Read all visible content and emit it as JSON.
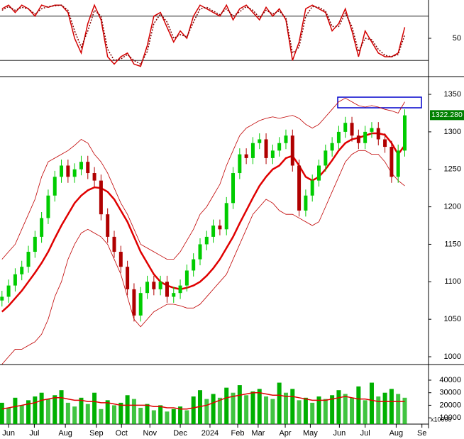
{
  "chart_data": [
    {
      "type": "line",
      "xlim": [
        -0.3,
        64.6
      ],
      "ylim": [
        0,
        100
      ],
      "yticks": [
        50
      ],
      "levels": [
        20,
        80
      ],
      "x": [
        0,
        1,
        2,
        3,
        4,
        5,
        6,
        7,
        8,
        9,
        10,
        11,
        12,
        13,
        14,
        15,
        16,
        17,
        18,
        19,
        20,
        21,
        22,
        23,
        24,
        25,
        26,
        27,
        28,
        29,
        30,
        31,
        32,
        33,
        34,
        35,
        36,
        37,
        38,
        39,
        40,
        41,
        42,
        43,
        44,
        45,
        46,
        47,
        48,
        49,
        50,
        51,
        52,
        53,
        54,
        55,
        56,
        57,
        58,
        59,
        60,
        61
      ],
      "series": [
        {
          "color": "#d40000",
          "values": [
            90,
            95,
            85,
            95,
            90,
            80,
            95,
            92,
            95,
            95,
            85,
            50,
            30,
            70,
            95,
            75,
            25,
            15,
            25,
            30,
            15,
            12,
            40,
            80,
            85,
            65,
            45,
            60,
            50,
            80,
            95,
            90,
            85,
            80,
            95,
            75,
            90,
            95,
            85,
            75,
            92,
            80,
            90,
            75,
            20,
            45,
            90,
            95,
            90,
            85,
            60,
            70,
            90,
            60,
            25,
            60,
            45,
            30,
            25,
            25,
            30,
            65
          ]
        },
        {
          "color": "#800000",
          "dashed": true,
          "values": [
            88,
            93,
            88,
            92,
            90,
            83,
            90,
            93,
            94,
            95,
            88,
            60,
            38,
            60,
            88,
            80,
            35,
            20,
            22,
            28,
            20,
            15,
            32,
            70,
            83,
            72,
            50,
            55,
            52,
            72,
            90,
            92,
            87,
            82,
            90,
            80,
            86,
            93,
            88,
            78,
            88,
            83,
            87,
            78,
            30,
            38,
            80,
            93,
            92,
            87,
            66,
            66,
            84,
            66,
            32,
            50,
            48,
            35,
            27,
            25,
            28,
            55
          ]
        }
      ]
    },
    {
      "type": "candlestick",
      "xlim": [
        -0.3,
        64.6
      ],
      "ylim": [
        991.5,
        1371.8
      ],
      "yticks": [
        1000,
        1050,
        1100,
        1150,
        1200,
        1250,
        1300,
        1350
      ],
      "up_color": "#00cc00",
      "down_color": "#b00000",
      "last_price": {
        "value": 1322.28,
        "label": "1322.280"
      },
      "x": [
        0,
        1,
        2,
        3,
        4,
        5,
        6,
        7,
        8,
        9,
        10,
        11,
        12,
        13,
        14,
        15,
        16,
        17,
        18,
        19,
        20,
        21,
        22,
        23,
        24,
        25,
        26,
        27,
        28,
        29,
        30,
        31,
        32,
        33,
        34,
        35,
        36,
        37,
        38,
        39,
        40,
        41,
        42,
        43,
        44,
        45,
        46,
        47,
        48,
        49,
        50,
        51,
        52,
        53,
        54,
        55,
        56,
        57,
        58,
        59,
        60,
        61
      ],
      "open": [
        1075,
        1080,
        1095,
        1110,
        1120,
        1140,
        1160,
        1185,
        1215,
        1240,
        1255,
        1240,
        1250,
        1260,
        1245,
        1235,
        1190,
        1160,
        1140,
        1120,
        1090,
        1055,
        1085,
        1100,
        1090,
        1100,
        1080,
        1085,
        1095,
        1115,
        1130,
        1150,
        1160,
        1175,
        1170,
        1205,
        1245,
        1270,
        1265,
        1285,
        1290,
        1265,
        1275,
        1285,
        1295,
        1255,
        1195,
        1215,
        1235,
        1255,
        1275,
        1285,
        1300,
        1312,
        1295,
        1285,
        1300,
        1305,
        1290,
        1280,
        1240,
        1275
      ],
      "high": [
        1088,
        1103,
        1118,
        1128,
        1148,
        1168,
        1193,
        1223,
        1248,
        1263,
        1263,
        1258,
        1268,
        1268,
        1253,
        1243,
        1198,
        1168,
        1148,
        1128,
        1098,
        1093,
        1108,
        1108,
        1108,
        1108,
        1093,
        1103,
        1123,
        1138,
        1158,
        1168,
        1183,
        1183,
        1213,
        1253,
        1278,
        1278,
        1293,
        1298,
        1298,
        1283,
        1293,
        1303,
        1303,
        1263,
        1223,
        1243,
        1263,
        1283,
        1293,
        1308,
        1320,
        1320,
        1303,
        1308,
        1313,
        1313,
        1298,
        1288,
        1283,
        1330
      ],
      "low": [
        1067,
        1072,
        1087,
        1102,
        1112,
        1132,
        1152,
        1177,
        1207,
        1232,
        1232,
        1232,
        1242,
        1237,
        1227,
        1182,
        1152,
        1132,
        1112,
        1082,
        1047,
        1047,
        1077,
        1082,
        1082,
        1072,
        1072,
        1077,
        1087,
        1107,
        1122,
        1142,
        1152,
        1162,
        1162,
        1197,
        1237,
        1257,
        1257,
        1277,
        1257,
        1257,
        1267,
        1277,
        1247,
        1187,
        1187,
        1207,
        1227,
        1247,
        1267,
        1277,
        1292,
        1287,
        1277,
        1277,
        1292,
        1282,
        1272,
        1232,
        1232,
        1267
      ],
      "close": [
        1080,
        1095,
        1110,
        1120,
        1140,
        1160,
        1185,
        1215,
        1240,
        1255,
        1240,
        1250,
        1260,
        1245,
        1235,
        1190,
        1160,
        1140,
        1120,
        1090,
        1055,
        1085,
        1100,
        1090,
        1100,
        1080,
        1085,
        1095,
        1115,
        1130,
        1150,
        1160,
        1175,
        1170,
        1205,
        1245,
        1270,
        1265,
        1285,
        1290,
        1265,
        1275,
        1285,
        1295,
        1255,
        1195,
        1215,
        1235,
        1255,
        1275,
        1285,
        1300,
        1312,
        1295,
        1285,
        1300,
        1305,
        1290,
        1280,
        1240,
        1275,
        1322
      ],
      "series": [
        {
          "color": "#e00000",
          "width": 2.5,
          "values": [
            1060,
            1068,
            1078,
            1088,
            1100,
            1112,
            1125,
            1140,
            1158,
            1175,
            1190,
            1205,
            1215,
            1222,
            1226,
            1225,
            1220,
            1210,
            1195,
            1180,
            1160,
            1140,
            1125,
            1110,
            1100,
            1095,
            1092,
            1090,
            1092,
            1095,
            1100,
            1108,
            1118,
            1130,
            1145,
            1160,
            1178,
            1195,
            1212,
            1228,
            1240,
            1250,
            1255,
            1265,
            1268,
            1255,
            1240,
            1235,
            1240,
            1250,
            1262,
            1275,
            1285,
            1290,
            1292,
            1295,
            1298,
            1298,
            1296,
            1285,
            1270,
            1282
          ]
        },
        {
          "color": "#c00000",
          "width": 0.8,
          "values": [
            1130,
            1140,
            1150,
            1170,
            1190,
            1210,
            1240,
            1260,
            1265,
            1270,
            1275,
            1282,
            1290,
            1285,
            1270,
            1260,
            1245,
            1225,
            1205,
            1190,
            1170,
            1150,
            1145,
            1140,
            1135,
            1130,
            1130,
            1140,
            1155,
            1170,
            1190,
            1200,
            1215,
            1230,
            1255,
            1275,
            1295,
            1305,
            1310,
            1315,
            1318,
            1320,
            1318,
            1320,
            1322,
            1318,
            1310,
            1305,
            1310,
            1320,
            1330,
            1340,
            1345,
            1340,
            1335,
            1333,
            1335,
            1333,
            1330,
            1328,
            1325,
            1340
          ]
        },
        {
          "color": "#c00000",
          "width": 0.8,
          "values": [
            990,
            1000,
            1010,
            1010,
            1015,
            1020,
            1030,
            1050,
            1080,
            1100,
            1130,
            1150,
            1165,
            1170,
            1165,
            1160,
            1150,
            1130,
            1110,
            1080,
            1050,
            1040,
            1050,
            1060,
            1065,
            1070,
            1070,
            1068,
            1065,
            1065,
            1070,
            1080,
            1090,
            1100,
            1110,
            1130,
            1150,
            1170,
            1190,
            1200,
            1210,
            1205,
            1195,
            1190,
            1190,
            1185,
            1180,
            1175,
            1180,
            1200,
            1220,
            1240,
            1260,
            1270,
            1275,
            1275,
            1270,
            1270,
            1260,
            1245,
            1235,
            1228
          ]
        }
      ]
    },
    {
      "type": "bar",
      "xlim": [
        -0.3,
        64.6
      ],
      "ylim": [
        5000,
        51300
      ],
      "yticks": [
        10000,
        20000,
        30000,
        40000
      ],
      "unit_label": "x10000",
      "color": "#00b000",
      "xticks": [
        {
          "value": 1.0,
          "label": "Jun"
        },
        {
          "value": 4.9,
          "label": "Jul"
        },
        {
          "value": 9.6,
          "label": "Aug"
        },
        {
          "value": 14.3,
          "label": "Sep"
        },
        {
          "value": 18.1,
          "label": "Oct"
        },
        {
          "value": 22.4,
          "label": "Nov"
        },
        {
          "value": 27.0,
          "label": "Dec"
        },
        {
          "value": 31.5,
          "label": "2024"
        },
        {
          "value": 35.7,
          "label": "Feb"
        },
        {
          "value": 38.8,
          "label": "Mar"
        },
        {
          "value": 42.9,
          "label": "Apr"
        },
        {
          "value": 46.7,
          "label": "May"
        },
        {
          "value": 51.1,
          "label": "Jun"
        },
        {
          "value": 55.0,
          "label": "Jul"
        },
        {
          "value": 59.7,
          "label": "Aug"
        },
        {
          "value": 63.6,
          "label": "Se"
        }
      ],
      "x": [
        0,
        1,
        2,
        3,
        4,
        5,
        6,
        7,
        8,
        9,
        10,
        11,
        12,
        13,
        14,
        15,
        16,
        17,
        18,
        19,
        20,
        21,
        22,
        23,
        24,
        25,
        26,
        27,
        28,
        29,
        30,
        31,
        32,
        33,
        34,
        35,
        36,
        37,
        38,
        39,
        40,
        41,
        42,
        43,
        44,
        45,
        46,
        47,
        48,
        49,
        50,
        51,
        52,
        53,
        54,
        55,
        56,
        57,
        58,
        59,
        60,
        61
      ],
      "values": [
        22000,
        18000,
        26000,
        20000,
        24000,
        27000,
        30000,
        25000,
        28000,
        32000,
        22000,
        19000,
        26000,
        21000,
        30000,
        17000,
        24000,
        20000,
        22000,
        28000,
        25000,
        18000,
        21000,
        16000,
        20000,
        15000,
        17000,
        19000,
        16000,
        27000,
        32000,
        25000,
        29000,
        26000,
        34000,
        30000,
        36000,
        28000,
        31000,
        33000,
        27000,
        25000,
        38000,
        30000,
        33000,
        24000,
        26000,
        22000,
        27000,
        25000,
        28000,
        32000,
        29000,
        26000,
        35000,
        24000,
        38000,
        27000,
        30000,
        33000,
        29000,
        26000
      ],
      "series": [
        {
          "color": "#e00000",
          "values": [
            17000,
            18000,
            19000,
            20000,
            21000,
            22000,
            24000,
            25000,
            26000,
            26000,
            25000,
            24000,
            24000,
            23000,
            23000,
            22000,
            22000,
            21000,
            20000,
            20000,
            20000,
            20000,
            20000,
            19000,
            19000,
            18000,
            18000,
            17000,
            17000,
            18000,
            19000,
            20000,
            22000,
            24000,
            26000,
            27000,
            28000,
            29000,
            30000,
            30000,
            29000,
            28000,
            28000,
            27000,
            27000,
            26000,
            25000,
            24000,
            24000,
            24000,
            25000,
            26000,
            27000,
            26000,
            25000,
            25000,
            24000,
            23000,
            23000,
            23000,
            23000,
            23000
          ]
        }
      ]
    }
  ]
}
